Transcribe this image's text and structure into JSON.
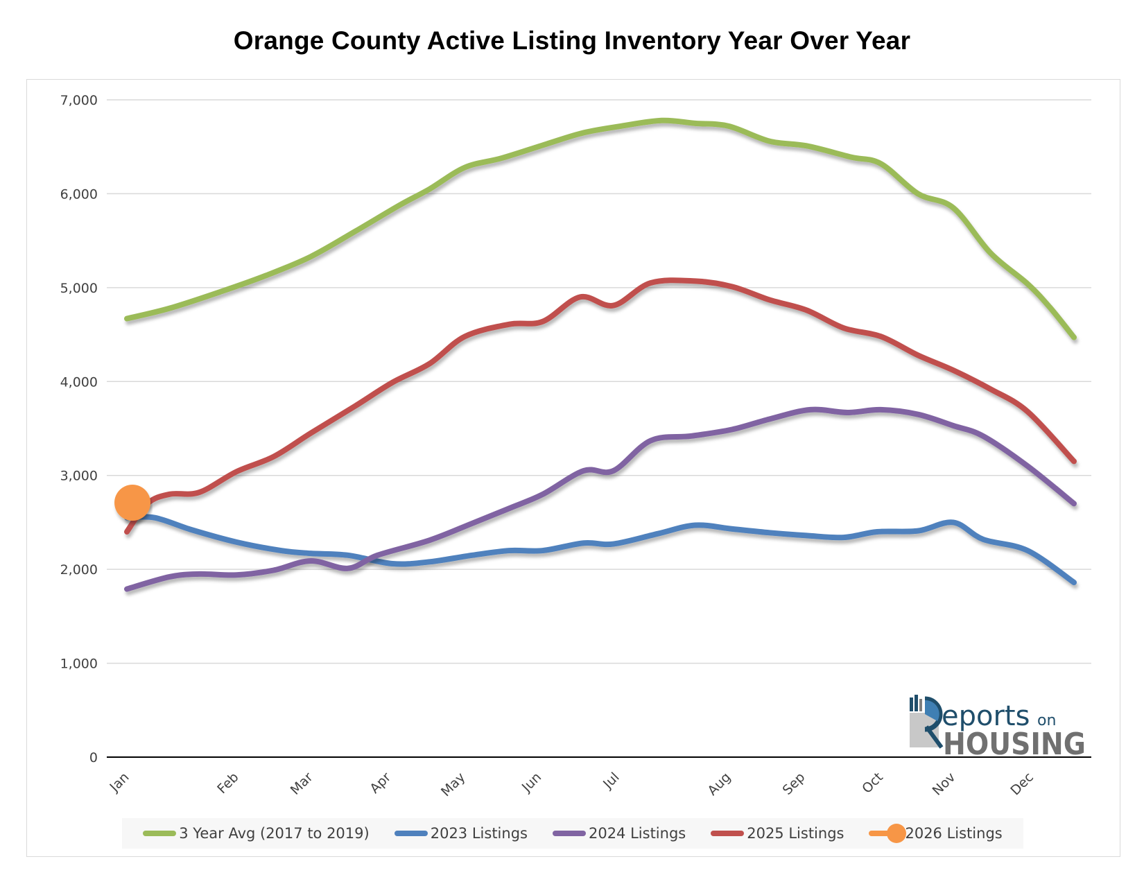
{
  "chart_data": {
    "type": "line",
    "title": "Orange County Active Listing Inventory Year Over Year",
    "xlabel": "",
    "ylabel": "",
    "ylim": [
      0,
      7000
    ],
    "yticks": [
      0,
      1000,
      2000,
      3000,
      4000,
      5000,
      6000,
      7000
    ],
    "ytick_labels": [
      "0",
      "1,000",
      "2,000",
      "3,000",
      "4,000",
      "5,000",
      "6,000",
      "7,000"
    ],
    "x_unit": "week of year",
    "xlim": [
      1,
      52
    ],
    "xticks": [
      {
        "label": "Jan",
        "x": 1
      },
      {
        "label": "Feb",
        "x": 6.9
      },
      {
        "label": "Mar",
        "x": 10.9
      },
      {
        "label": "Apr",
        "x": 15.1
      },
      {
        "label": "May",
        "x": 19.1
      },
      {
        "label": "Jun",
        "x": 23.2
      },
      {
        "label": "Jul",
        "x": 27.4
      },
      {
        "label": "Aug",
        "x": 33.4
      },
      {
        "label": "Sep",
        "x": 37.4
      },
      {
        "label": "Oct",
        "x": 41.6
      },
      {
        "label": "Nov",
        "x": 45.5
      },
      {
        "label": "Dec",
        "x": 49.7
      }
    ],
    "grid": true,
    "legend_position": "bottom",
    "series": [
      {
        "name": "3 Year Avg (2017 to 2019)",
        "color": "#9bbb59",
        "x": [
          1,
          3.3,
          6.1,
          8.5,
          10.9,
          13.3,
          15.7,
          17.3,
          19.2,
          21.2,
          23.6,
          25.6,
          27.6,
          29.8,
          31.6,
          33.4,
          35.6,
          37.6,
          40,
          41.6,
          43.6,
          45.5,
          47.5,
          49.5,
          50.7,
          52
        ],
        "values": [
          4670,
          4780,
          4960,
          5130,
          5330,
          5600,
          5880,
          6050,
          6280,
          6380,
          6530,
          6650,
          6720,
          6780,
          6750,
          6720,
          6560,
          6510,
          6390,
          6320,
          6000,
          5850,
          5370,
          5040,
          4790,
          4470
        ]
      },
      {
        "name": "2023 Listings",
        "color": "#4f81bd",
        "x": [
          1,
          2.5,
          4.5,
          6.9,
          9.3,
          10.9,
          12.9,
          15.3,
          17.3,
          19.6,
          21.6,
          23.4,
          25.6,
          27.2,
          29.6,
          31.6,
          33.6,
          35.6,
          37.6,
          39.6,
          41.4,
          43.6,
          45.5,
          47.1,
          49.5,
          52
        ],
        "values": [
          2550,
          2550,
          2420,
          2290,
          2200,
          2170,
          2150,
          2060,
          2080,
          2150,
          2200,
          2200,
          2280,
          2270,
          2380,
          2470,
          2430,
          2390,
          2360,
          2340,
          2400,
          2410,
          2500,
          2320,
          2200,
          1860
        ]
      },
      {
        "name": "2024 Listings",
        "color": "#8064a2",
        "x": [
          1,
          3.3,
          4.9,
          6.9,
          8.9,
          10.9,
          12.9,
          14.5,
          17.3,
          19.6,
          21.6,
          23.4,
          25.6,
          27.2,
          29.2,
          31.4,
          33.6,
          35.6,
          37.8,
          39.8,
          41.6,
          43.6,
          45.5,
          47.1,
          49.5,
          52
        ],
        "values": [
          1790,
          1920,
          1950,
          1940,
          1990,
          2090,
          2010,
          2150,
          2310,
          2490,
          2650,
          2800,
          3050,
          3050,
          3370,
          3420,
          3490,
          3600,
          3700,
          3670,
          3700,
          3650,
          3530,
          3420,
          3100,
          2700
        ]
      },
      {
        "name": "2025 Listings",
        "color": "#c0504d",
        "x": [
          1,
          2.1,
          3.3,
          4.9,
          6.9,
          8.9,
          10.9,
          13.3,
          15.3,
          17.3,
          19.2,
          21.6,
          23.4,
          25.4,
          27.2,
          29.2,
          31.6,
          33.6,
          35.6,
          37.6,
          39.6,
          41.6,
          43.6,
          45.5,
          47.5,
          49.5,
          52
        ],
        "values": [
          2400,
          2700,
          2800,
          2820,
          3040,
          3200,
          3450,
          3740,
          3990,
          4190,
          4480,
          4610,
          4640,
          4900,
          4810,
          5050,
          5070,
          5010,
          4870,
          4760,
          4570,
          4480,
          4280,
          4120,
          3920,
          3680,
          3150
        ]
      },
      {
        "name": "2026 Listings",
        "color": "#f79646",
        "x": [
          1.3
        ],
        "values": [
          2710
        ],
        "marker": "circle"
      }
    ]
  },
  "logo": {
    "line1": "eports",
    "line1_suffix": "on",
    "line2": "HOUSING"
  }
}
